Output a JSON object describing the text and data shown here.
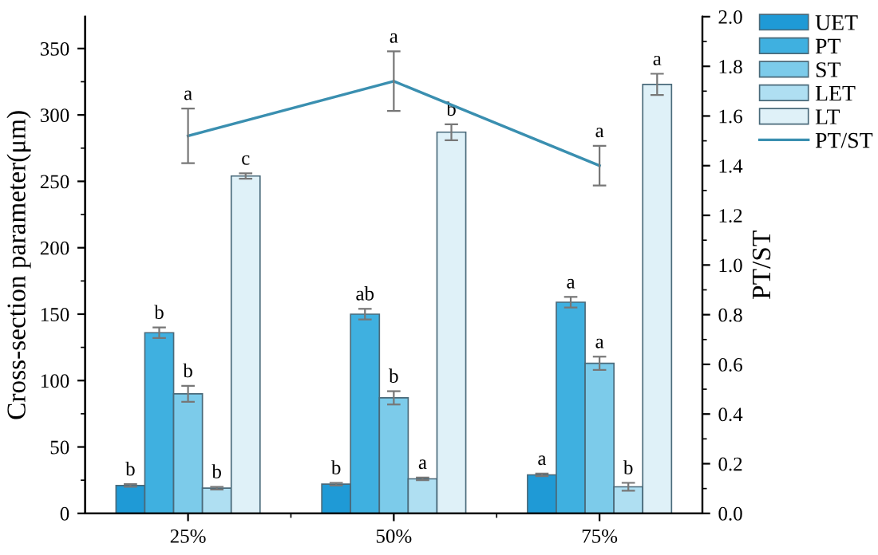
{
  "chart_data": {
    "type": "bar",
    "ylabel": "Cross-section parameter(μm)",
    "y2label": "PT/ST",
    "categories": [
      "25%",
      "50%",
      "75%"
    ],
    "ylim": [
      0,
      374
    ],
    "yticks": [
      0,
      50,
      100,
      150,
      200,
      250,
      300,
      350
    ],
    "y2lim": [
      0,
      2.0
    ],
    "y2ticks": [
      {
        "value": 0,
        "label": "0.0"
      },
      {
        "value": 0.2,
        "label": "0.2"
      },
      {
        "value": 0.4,
        "label": "0.4"
      },
      {
        "value": 0.6,
        "label": "0.6"
      },
      {
        "value": 0.8,
        "label": "0.8"
      },
      {
        "value": 1.0,
        "label": "1.0"
      },
      {
        "value": 1.2,
        "label": "1.2"
      },
      {
        "value": 1.4,
        "label": "1.4"
      },
      {
        "value": 1.6,
        "label": "1.6"
      },
      {
        "value": 1.8,
        "label": "1.8"
      },
      {
        "value": 2.0,
        "label": "2.0"
      }
    ],
    "legend": "right",
    "grid": false,
    "series": [
      {
        "name": "UET",
        "color": "#1f9ad6",
        "values": [
          21,
          22,
          29
        ],
        "errors": [
          1,
          1,
          1
        ],
        "value_labels": [
          "b",
          "b",
          "a"
        ]
      },
      {
        "name": "PT",
        "color": "#3fb0e0",
        "values": [
          136,
          150,
          159
        ],
        "errors": [
          4,
          4,
          4
        ],
        "value_labels": [
          "b",
          "ab",
          "a"
        ]
      },
      {
        "name": "ST",
        "color": "#7ccbea",
        "values": [
          90,
          87,
          113
        ],
        "errors": [
          6,
          5,
          5
        ],
        "value_labels": [
          "b",
          "b",
          "a"
        ]
      },
      {
        "name": "LET",
        "color": "#afdff2",
        "values": [
          19,
          26,
          20
        ],
        "errors": [
          1,
          1,
          3
        ],
        "value_labels": [
          "b",
          "a",
          "b"
        ]
      },
      {
        "name": "LT",
        "color": "#dff1f8",
        "values": [
          254,
          287,
          323
        ],
        "errors": [
          2,
          6,
          8
        ],
        "value_labels": [
          "c",
          "b",
          "a"
        ]
      },
      {
        "name": "PT/ST",
        "type": "line",
        "axis": "y2",
        "color": "#3a8fb0",
        "values": [
          1.52,
          1.74,
          1.4
        ],
        "errors": [
          0.11,
          0.12,
          0.08
        ],
        "value_labels": [
          "a",
          "a",
          "a"
        ]
      }
    ]
  }
}
